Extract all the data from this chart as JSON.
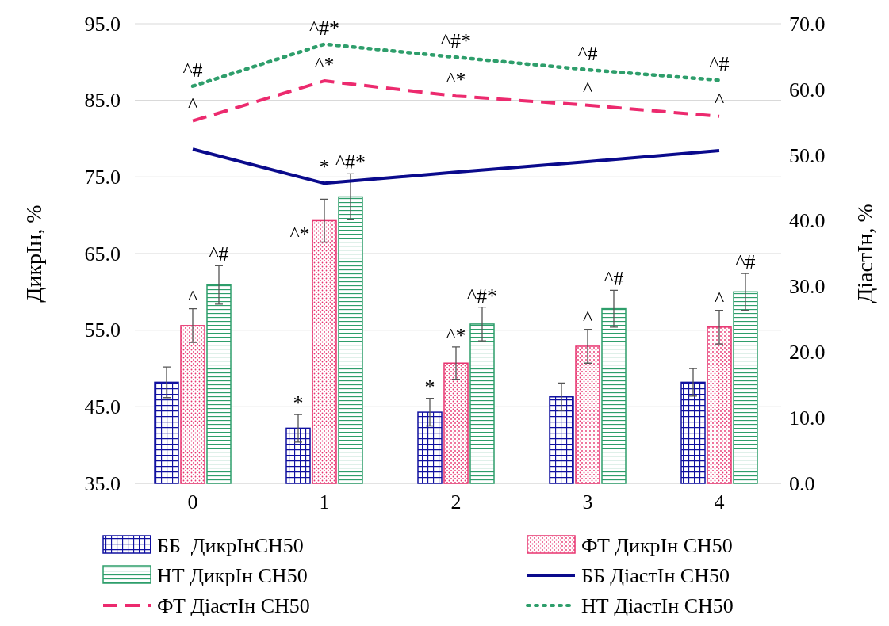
{
  "chart_data": {
    "type": "bar",
    "ylabel": "ДикрІн, %",
    "y2label": "ДіастІн, %",
    "categories": [
      "0",
      "1",
      "2",
      "3",
      "4"
    ],
    "ylim": [
      35,
      95
    ],
    "yticks": [
      {
        "value": 35,
        "label": "35.0"
      },
      {
        "value": 45,
        "label": "45.0"
      },
      {
        "value": 55,
        "label": "55.0"
      },
      {
        "value": 65,
        "label": "65.0"
      },
      {
        "value": 75,
        "label": "75.0"
      },
      {
        "value": 85,
        "label": "85.0"
      },
      {
        "value": 95,
        "label": "95.0"
      }
    ],
    "y2lim": [
      0,
      70
    ],
    "y2ticks": [
      {
        "value": 0,
        "label": "0.0"
      },
      {
        "value": 10,
        "label": "10.0"
      },
      {
        "value": 20,
        "label": "20.0"
      },
      {
        "value": 30,
        "label": "30.0"
      },
      {
        "value": 40,
        "label": "40.0"
      },
      {
        "value": 50,
        "label": "50.0"
      },
      {
        "value": 60,
        "label": "60.0"
      },
      {
        "value": 70,
        "label": "70.0"
      }
    ],
    "grid": "y",
    "legend": "bottom",
    "series": [
      {
        "name": "ББ  ДикрІнСН50",
        "color": "#1010a0",
        "values": [
          48.2,
          42.2,
          44.3,
          46.3,
          48.2
        ],
        "errors": [
          2,
          1.8,
          1.8,
          1.8,
          1.8
        ],
        "value_labels": [
          null,
          "*",
          "*",
          null,
          null
        ]
      },
      {
        "name": "ФТ ДикрІн СН50",
        "color": "#e8336f",
        "values": [
          55.6,
          69.3,
          50.7,
          52.9,
          55.4
        ],
        "errors": [
          2.2,
          2.8,
          2.1,
          2.2,
          2.2
        ],
        "value_labels": [
          "^",
          "^*",
          "^*",
          "^",
          "^"
        ]
      },
      {
        "name": "НТ ДикрІн СН50",
        "color": "#2e9e6b",
        "values": [
          60.9,
          72.4,
          55.8,
          57.8,
          60.0
        ],
        "errors": [
          2.5,
          3,
          2.2,
          2.4,
          2.4
        ],
        "value_labels": [
          "^#",
          "^#*",
          "^#*",
          "^#",
          "^#"
        ]
      },
      {
        "name": "ББ ДіастІн СН50",
        "type": "line",
        "axis": "y2",
        "color": "#0a0a8c",
        "line_style": "solid",
        "values": [
          50.9,
          45.7,
          47.4,
          49.0,
          50.7
        ],
        "value_labels": [
          null,
          "*",
          null,
          null,
          null
        ]
      },
      {
        "name": "ФТ ДіастІн СН50",
        "type": "line",
        "axis": "y2",
        "color": "#ec2a6e",
        "line_style": "dashed",
        "values": [
          55.2,
          61.3,
          59.0,
          57.6,
          55.9
        ],
        "value_labels": [
          "^",
          "^*",
          "^*",
          "^",
          "^"
        ]
      },
      {
        "name": "НТ ДіастІн СН50",
        "type": "line",
        "axis": "y2",
        "color": "#2e9e6b",
        "line_style": "dotted",
        "values": [
          60.5,
          66.9,
          64.9,
          63.0,
          61.4
        ],
        "value_labels": [
          "^#",
          "^#*",
          "^#*",
          "^#",
          "^#"
        ]
      }
    ]
  }
}
